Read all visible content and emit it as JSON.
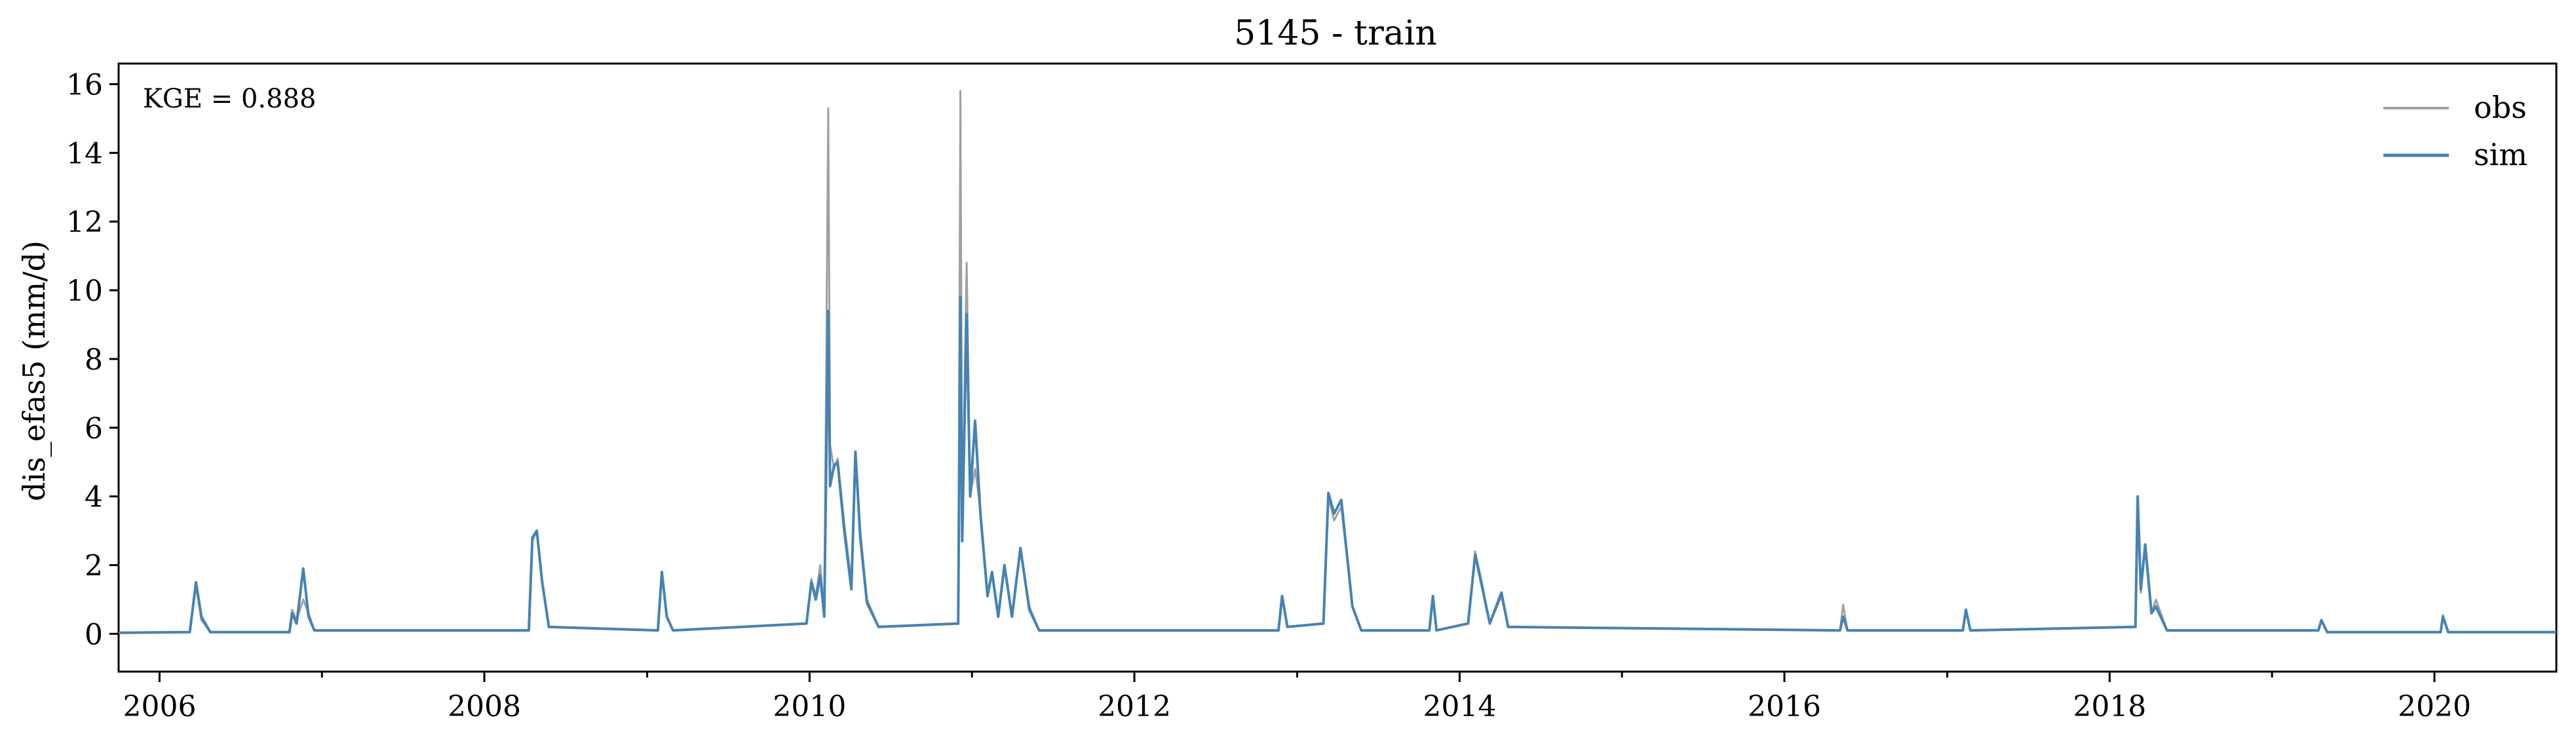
{
  "chart_data": {
    "type": "line",
    "title": "5145 - train",
    "xlabel": "",
    "ylabel": "dis_efas5 (mm/d)",
    "annotation": "KGE = 0.888",
    "xlim": [
      "2005-10-01",
      "2020-10-01"
    ],
    "ylim": [
      -1.1,
      16.6
    ],
    "x_ticks": [
      "2006",
      "2008",
      "2010",
      "2012",
      "2014",
      "2016",
      "2018",
      "2020"
    ],
    "y_ticks": [
      "0",
      "2",
      "4",
      "6",
      "8",
      "10",
      "12",
      "14",
      "16"
    ],
    "legend_position": "top-right",
    "grid": false,
    "series": [
      {
        "name": "obs",
        "color": "#a0a0a0",
        "points": [
          [
            "2005-10-01",
            0.03
          ],
          [
            "2006-03-10",
            0.05
          ],
          [
            "2006-03-24",
            1.4
          ],
          [
            "2006-04-05",
            0.4
          ],
          [
            "2006-04-25",
            0.05
          ],
          [
            "2006-10-20",
            0.05
          ],
          [
            "2006-10-26",
            0.7
          ],
          [
            "2006-11-05",
            0.4
          ],
          [
            "2006-11-20",
            1.0
          ],
          [
            "2006-12-02",
            0.6
          ],
          [
            "2006-12-15",
            0.1
          ],
          [
            "2008-04-10",
            0.1
          ],
          [
            "2008-04-18",
            2.7
          ],
          [
            "2008-04-28",
            3.0
          ],
          [
            "2008-05-10",
            1.5
          ],
          [
            "2008-05-25",
            0.2
          ],
          [
            "2009-01-25",
            0.1
          ],
          [
            "2009-02-03",
            1.7
          ],
          [
            "2009-02-14",
            0.5
          ],
          [
            "2009-02-28",
            0.1
          ],
          [
            "2009-12-25",
            0.3
          ],
          [
            "2010-01-05",
            1.6
          ],
          [
            "2010-01-15",
            1.1
          ],
          [
            "2010-01-25",
            2.0
          ],
          [
            "2010-02-03",
            0.5
          ],
          [
            "2010-02-12",
            15.3
          ],
          [
            "2010-02-16",
            5.5
          ],
          [
            "2010-02-25",
            4.8
          ],
          [
            "2010-03-05",
            5.1
          ],
          [
            "2010-03-20",
            3.2
          ],
          [
            "2010-04-05",
            1.5
          ],
          [
            "2010-04-14",
            5.3
          ],
          [
            "2010-04-25",
            3.0
          ],
          [
            "2010-05-10",
            1.0
          ],
          [
            "2010-06-05",
            0.2
          ],
          [
            "2010-12-01",
            0.3
          ],
          [
            "2010-12-06",
            15.8
          ],
          [
            "2010-12-10",
            3.0
          ],
          [
            "2010-12-20",
            10.8
          ],
          [
            "2010-12-28",
            4.0
          ],
          [
            "2011-01-08",
            4.8
          ],
          [
            "2011-01-20",
            3.6
          ],
          [
            "2011-02-05",
            1.2
          ],
          [
            "2011-02-15",
            1.8
          ],
          [
            "2011-03-01",
            0.6
          ],
          [
            "2011-03-15",
            1.9
          ],
          [
            "2011-04-01",
            0.5
          ],
          [
            "2011-04-20",
            2.5
          ],
          [
            "2011-05-10",
            0.8
          ],
          [
            "2011-06-01",
            0.1
          ],
          [
            "2012-11-20",
            0.1
          ],
          [
            "2012-11-28",
            1.1
          ],
          [
            "2012-12-10",
            0.2
          ],
          [
            "2013-03-01",
            0.3
          ],
          [
            "2013-03-12",
            4.0
          ],
          [
            "2013-03-25",
            3.3
          ],
          [
            "2013-04-10",
            3.7
          ],
          [
            "2013-05-05",
            0.8
          ],
          [
            "2013-05-25",
            0.1
          ],
          [
            "2013-10-25",
            0.1
          ],
          [
            "2013-11-02",
            1.0
          ],
          [
            "2013-11-10",
            0.1
          ],
          [
            "2014-01-20",
            0.3
          ],
          [
            "2014-02-05",
            2.4
          ],
          [
            "2014-02-20",
            1.5
          ],
          [
            "2014-03-10",
            0.3
          ],
          [
            "2014-04-05",
            1.1
          ],
          [
            "2014-04-20",
            0.2
          ],
          [
            "2016-05-05",
            0.1
          ],
          [
            "2016-05-12",
            0.85
          ],
          [
            "2016-05-22",
            0.1
          ],
          [
            "2017-02-05",
            0.1
          ],
          [
            "2017-02-12",
            0.7
          ],
          [
            "2017-02-22",
            0.1
          ],
          [
            "2018-02-28",
            0.2
          ],
          [
            "2018-03-05",
            3.8
          ],
          [
            "2018-03-12",
            1.2
          ],
          [
            "2018-03-22",
            2.5
          ],
          [
            "2018-04-05",
            0.6
          ],
          [
            "2018-04-15",
            1.0
          ],
          [
            "2018-05-10",
            0.1
          ],
          [
            "2019-04-15",
            0.1
          ],
          [
            "2019-04-22",
            0.4
          ],
          [
            "2019-05-05",
            0.05
          ],
          [
            "2020-01-15",
            0.05
          ],
          [
            "2020-01-20",
            0.55
          ],
          [
            "2020-02-01",
            0.05
          ],
          [
            "2020-10-01",
            0.05
          ]
        ]
      },
      {
        "name": "sim",
        "color": "#4682b4",
        "points": [
          [
            "2005-10-01",
            0.03
          ],
          [
            "2006-03-10",
            0.05
          ],
          [
            "2006-03-24",
            1.5
          ],
          [
            "2006-04-05",
            0.5
          ],
          [
            "2006-04-25",
            0.05
          ],
          [
            "2006-10-20",
            0.05
          ],
          [
            "2006-10-26",
            0.6
          ],
          [
            "2006-11-05",
            0.3
          ],
          [
            "2006-11-20",
            1.9
          ],
          [
            "2006-12-02",
            0.5
          ],
          [
            "2006-12-15",
            0.1
          ],
          [
            "2008-04-10",
            0.1
          ],
          [
            "2008-04-18",
            2.8
          ],
          [
            "2008-04-28",
            3.0
          ],
          [
            "2008-05-10",
            1.5
          ],
          [
            "2008-05-25",
            0.2
          ],
          [
            "2009-01-25",
            0.1
          ],
          [
            "2009-02-03",
            1.8
          ],
          [
            "2009-02-14",
            0.5
          ],
          [
            "2009-02-28",
            0.1
          ],
          [
            "2009-12-25",
            0.3
          ],
          [
            "2010-01-05",
            1.5
          ],
          [
            "2010-01-15",
            1.0
          ],
          [
            "2010-01-25",
            1.7
          ],
          [
            "2010-02-03",
            0.5
          ],
          [
            "2010-02-12",
            9.4
          ],
          [
            "2010-02-16",
            4.3
          ],
          [
            "2010-02-25",
            4.9
          ],
          [
            "2010-03-05",
            5.0
          ],
          [
            "2010-03-20",
            3.0
          ],
          [
            "2010-04-05",
            1.3
          ],
          [
            "2010-04-14",
            5.3
          ],
          [
            "2010-04-25",
            2.8
          ],
          [
            "2010-05-10",
            0.9
          ],
          [
            "2010-06-05",
            0.2
          ],
          [
            "2010-12-01",
            0.3
          ],
          [
            "2010-12-06",
            9.8
          ],
          [
            "2010-12-10",
            2.7
          ],
          [
            "2010-12-20",
            9.3
          ],
          [
            "2010-12-28",
            4.0
          ],
          [
            "2011-01-08",
            6.2
          ],
          [
            "2011-01-20",
            3.5
          ],
          [
            "2011-02-05",
            1.1
          ],
          [
            "2011-02-15",
            1.8
          ],
          [
            "2011-03-01",
            0.5
          ],
          [
            "2011-03-15",
            2.0
          ],
          [
            "2011-04-01",
            0.5
          ],
          [
            "2011-04-20",
            2.5
          ],
          [
            "2011-05-10",
            0.7
          ],
          [
            "2011-06-01",
            0.1
          ],
          [
            "2012-11-20",
            0.1
          ],
          [
            "2012-11-28",
            1.1
          ],
          [
            "2012-12-10",
            0.2
          ],
          [
            "2013-03-01",
            0.3
          ],
          [
            "2013-03-12",
            4.1
          ],
          [
            "2013-03-25",
            3.5
          ],
          [
            "2013-04-10",
            3.9
          ],
          [
            "2013-05-05",
            0.8
          ],
          [
            "2013-05-25",
            0.1
          ],
          [
            "2013-10-25",
            0.1
          ],
          [
            "2013-11-02",
            1.1
          ],
          [
            "2013-11-10",
            0.1
          ],
          [
            "2014-01-20",
            0.3
          ],
          [
            "2014-02-05",
            2.3
          ],
          [
            "2014-02-20",
            1.4
          ],
          [
            "2014-03-10",
            0.3
          ],
          [
            "2014-04-05",
            1.2
          ],
          [
            "2014-04-20",
            0.2
          ],
          [
            "2016-05-05",
            0.1
          ],
          [
            "2016-05-12",
            0.5
          ],
          [
            "2016-05-22",
            0.1
          ],
          [
            "2017-02-05",
            0.1
          ],
          [
            "2017-02-12",
            0.7
          ],
          [
            "2017-02-22",
            0.1
          ],
          [
            "2018-02-28",
            0.2
          ],
          [
            "2018-03-05",
            4.0
          ],
          [
            "2018-03-12",
            1.3
          ],
          [
            "2018-03-22",
            2.6
          ],
          [
            "2018-04-05",
            0.6
          ],
          [
            "2018-04-15",
            0.8
          ],
          [
            "2018-05-10",
            0.1
          ],
          [
            "2019-04-15",
            0.1
          ],
          [
            "2019-04-22",
            0.4
          ],
          [
            "2019-05-05",
            0.05
          ],
          [
            "2020-01-15",
            0.05
          ],
          [
            "2020-01-20",
            0.5
          ],
          [
            "2020-02-01",
            0.05
          ],
          [
            "2020-10-01",
            0.05
          ]
        ]
      }
    ]
  }
}
